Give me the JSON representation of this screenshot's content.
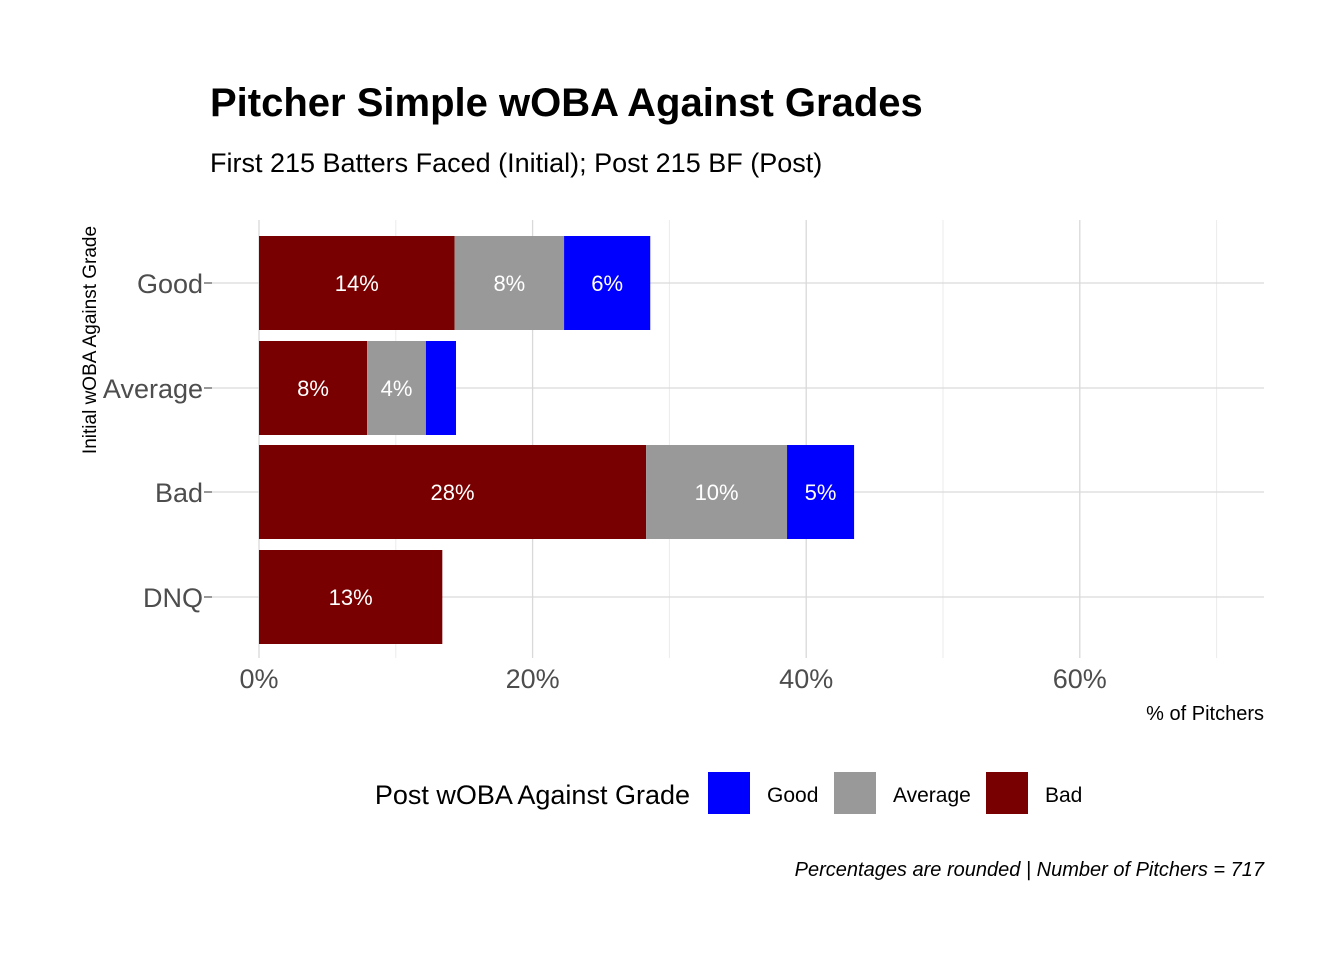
{
  "chart_data": {
    "type": "bar",
    "orientation": "horizontal",
    "stacked": true,
    "title": "Pitcher Simple wOBA Against Grades",
    "subtitle": "First 215 Batters Faced (Initial); Post 215 BF (Post)",
    "xlabel": "% of Pitchers",
    "ylabel": "Initial wOBA Against Grade",
    "categories": [
      "Good",
      "Average",
      "Bad",
      "DNQ"
    ],
    "series": [
      {
        "name": "Bad",
        "color": "#780000",
        "values": [
          14.3,
          7.9,
          28.3,
          13.4
        ],
        "labels": [
          "14%",
          "8%",
          "28%",
          "13%"
        ]
      },
      {
        "name": "Average",
        "color": "#999999",
        "values": [
          8.0,
          4.3,
          10.3,
          0
        ],
        "labels": [
          "8%",
          "4%",
          "10%",
          ""
        ]
      },
      {
        "name": "Good",
        "color": "#0000ff",
        "values": [
          6.3,
          2.2,
          4.9,
          0
        ],
        "labels": [
          "6%",
          "",
          "5%",
          ""
        ]
      }
    ],
    "xlim": [
      0,
      73.5
    ],
    "xticks": [
      0,
      20,
      40,
      60
    ],
    "xtick_labels": [
      "0%",
      "20%",
      "40%",
      "60%"
    ],
    "grid": true,
    "legend": {
      "title": "Post wOBA Against Grade",
      "position": "bottom",
      "items": [
        {
          "label": "Good",
          "color": "#0000ff"
        },
        {
          "label": "Average",
          "color": "#999999"
        },
        {
          "label": "Bad",
          "color": "#780000"
        }
      ]
    },
    "caption": "Percentages are rounded | Number of Pitchers = 717"
  }
}
